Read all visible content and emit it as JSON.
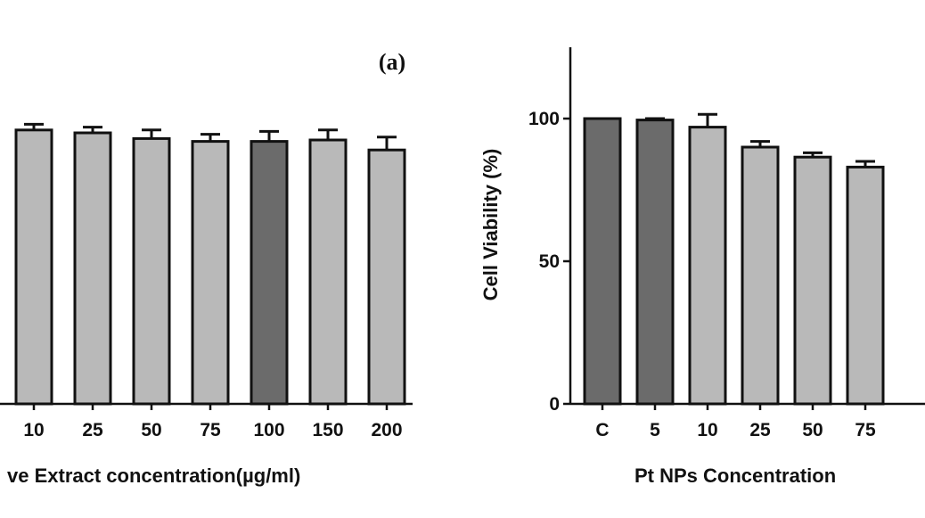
{
  "chart_data": [
    {
      "type": "bar",
      "panel_label": "(a)",
      "title": "",
      "xlabel": "ve Extract concentration(µg/ml)",
      "ylabel": "",
      "ylim": [
        0,
        125
      ],
      "grid": false,
      "legend": "none",
      "categories": [
        "10",
        "25",
        "50",
        "75",
        "100",
        "150",
        "200"
      ],
      "values": [
        96,
        95,
        93,
        92,
        92,
        92.5,
        89
      ],
      "errors": [
        2,
        2,
        3,
        2.5,
        3.5,
        3.5,
        4.5
      ],
      "bar_colors": [
        "#b9b9b9",
        "#b9b9b9",
        "#b9b9b9",
        "#b9b9b9",
        "#6b6b6b",
        "#b9b9b9",
        "#b9b9b9"
      ]
    },
    {
      "type": "bar",
      "title": "",
      "xlabel": "Pt NPs Concentration",
      "ylabel": "Cell Viability (%)",
      "ylim": [
        0,
        125
      ],
      "yticks": [
        "0",
        "50",
        "100"
      ],
      "grid": false,
      "legend": "none",
      "categories": [
        "C",
        "5",
        "10",
        "25",
        "50",
        "75"
      ],
      "values": [
        100,
        99.5,
        97,
        90,
        86.5,
        83
      ],
      "errors": [
        0,
        0.5,
        4.5,
        2,
        1.5,
        2
      ],
      "bar_colors": [
        "#6b6b6b",
        "#6b6b6b",
        "#b9b9b9",
        "#b9b9b9",
        "#b9b9b9",
        "#b9b9b9"
      ]
    }
  ],
  "colors": {
    "axis": "#111111",
    "light_bar": "#b9b9b9",
    "dark_bar": "#6b6b6b"
  }
}
